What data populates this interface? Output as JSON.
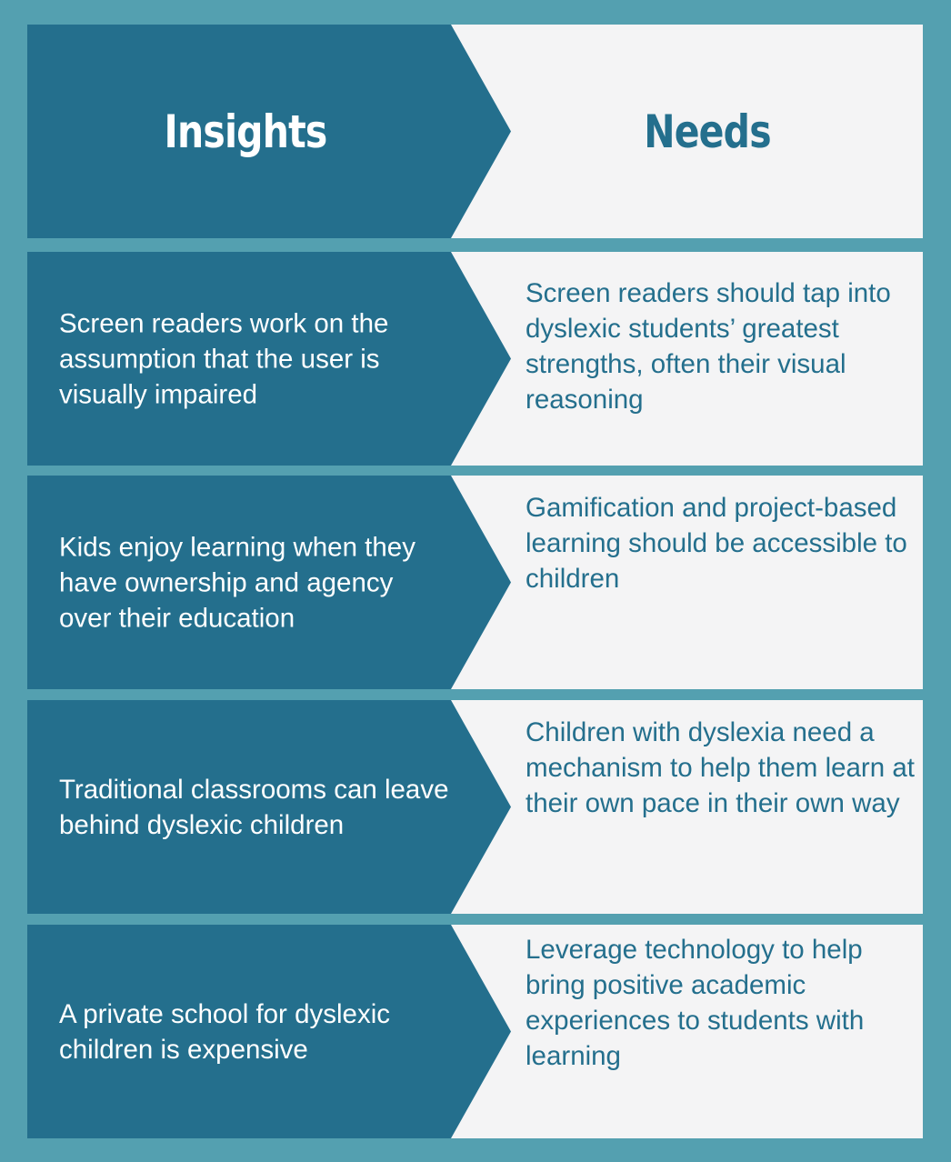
{
  "header": {
    "insights_title": "Insights",
    "needs_title": "Needs"
  },
  "rows": [
    {
      "insight": "Screen readers work on the assumption that the user is visually impaired",
      "need": "Screen readers should tap into dyslexic students’ greatest strengths, often their visual reasoning"
    },
    {
      "insight": "Kids enjoy learning when they have ownership and agency over their education",
      "need": "Gamification and project-based learning should be accessible to children"
    },
    {
      "insight": "Traditional classrooms can leave behind dyslexic children",
      "need": "Children with dyslexia need a mechanism to help them learn at their own pace in their own way"
    },
    {
      "insight": "A private school for dyslexic children is expensive",
      "need": "Leverage technology to help bring positive academic experiences to students with learning"
    }
  ],
  "colors": {
    "frame": "#54a0b0",
    "insight_panel": "#246f8d",
    "need_panel": "#f4f4f5",
    "need_text": "#246f8d"
  }
}
